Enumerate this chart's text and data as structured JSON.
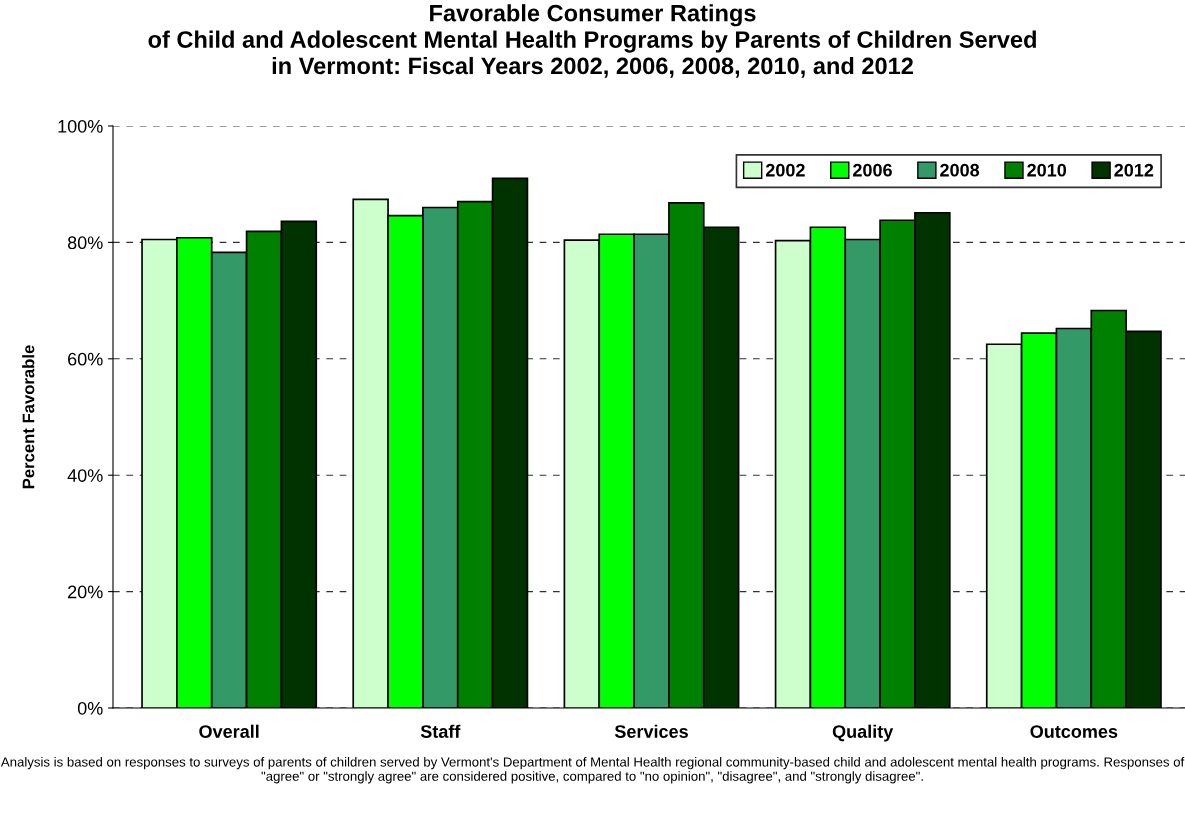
{
  "chart_data": {
    "type": "bar",
    "title": "Favorable Consumer Ratings\nof Child and Adolescent Mental Health Programs by Parents of Children Served\nin Vermont: Fiscal Years 2002, 2006, 2008, 2010, and 2012",
    "ylabel": "Percent Favorable",
    "categories": [
      "Overall",
      "Staff",
      "Services",
      "Quality",
      "Outcomes"
    ],
    "series": [
      {
        "name": "2002",
        "color": "#ccffcc",
        "values": [
          80.5,
          87.4,
          80.4,
          80.3,
          62.5
        ]
      },
      {
        "name": "2006",
        "color": "#00ff00",
        "values": [
          80.8,
          84.6,
          81.4,
          82.6,
          64.4
        ]
      },
      {
        "name": "2008",
        "color": "#339966",
        "values": [
          78.3,
          86.0,
          81.4,
          80.5,
          65.2
        ]
      },
      {
        "name": "2010",
        "color": "#008000",
        "values": [
          81.9,
          87.0,
          86.8,
          83.8,
          68.3
        ]
      },
      {
        "name": "2012",
        "color": "#003300",
        "values": [
          83.6,
          91.0,
          82.6,
          85.1,
          64.7
        ]
      }
    ],
    "ylim": [
      0,
      100
    ],
    "yticks": [
      {
        "value": 0,
        "label": "0%"
      },
      {
        "value": 20,
        "label": "20%"
      },
      {
        "value": 40,
        "label": "40%"
      },
      {
        "value": 60,
        "label": "60%"
      },
      {
        "value": 80,
        "label": "80%"
      },
      {
        "value": 100,
        "label": "100%"
      }
    ],
    "grid": "y",
    "legend": "top right",
    "annotations": [
      "Analysis is based on responses to surveys of parents of children served by Vermont's Department of Mental Health regional community-based child and adolescent mental health programs. Responses of \"agree\" or \"strongly agree\" are considered positive, compared to \"no opinion\", \"disagree\", and \"strongly disagree\"."
    ]
  }
}
